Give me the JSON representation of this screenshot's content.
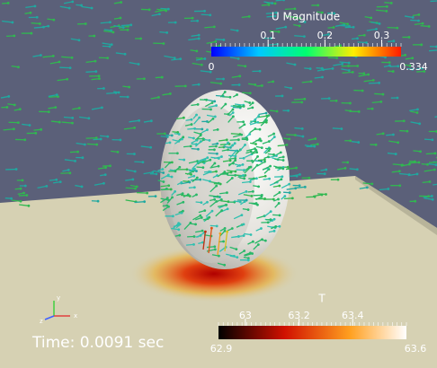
{
  "u_colorbar": {
    "title": "U Magnitude",
    "range": [
      0,
      0.334
    ],
    "ticks": [
      0.1,
      0.2,
      0.3
    ],
    "min_label": "0",
    "max_label": "0.334"
  },
  "t_colorbar": {
    "title": "T",
    "range": [
      62.9,
      63.6
    ],
    "ticks": [
      63,
      63.2,
      63.4
    ],
    "min_label": "62.9",
    "max_label": "63.6"
  },
  "time_text": "Time:  0.0091 sec",
  "axes": {
    "x": "x",
    "y": "y",
    "z": "z"
  }
}
